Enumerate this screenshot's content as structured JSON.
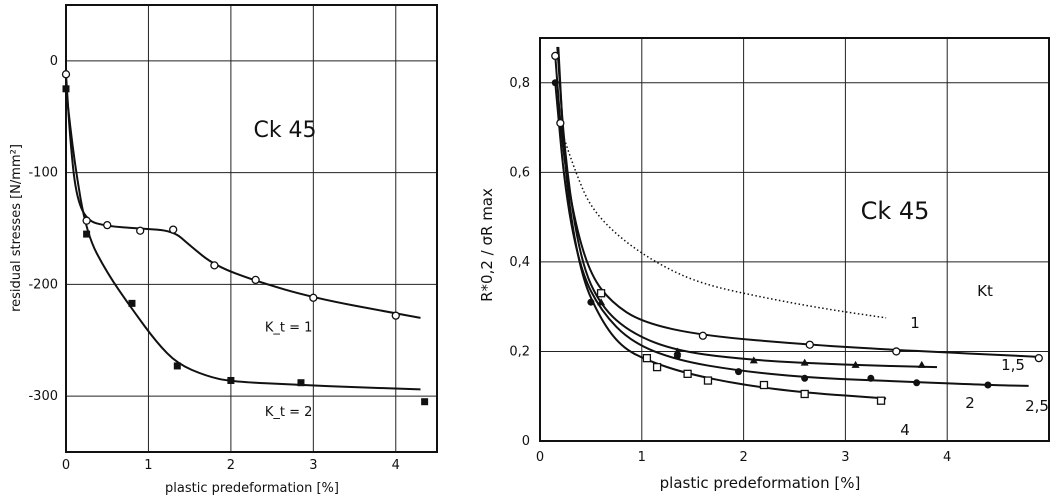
{
  "chart_data": [
    {
      "type": "line",
      "material": "Ck 45",
      "xlabel": "plastic predeformation [%]",
      "ylabel": "residual stresses [N/mm²]",
      "xlim": [
        0,
        4.5
      ],
      "ylim": [
        -350,
        50
      ],
      "xticks": [
        0,
        1,
        2,
        3,
        4
      ],
      "xtick_labels": [
        "0",
        "1",
        "2",
        "3",
        "4"
      ],
      "yticks": [
        0,
        -100,
        -200,
        -300
      ],
      "ytick_labels": [
        "0",
        "-100",
        "-200",
        "-300"
      ],
      "grid": true,
      "series": [
        {
          "name": "K_t = 1",
          "label_x": 2.7,
          "label_y": -242,
          "marker": "open-circle",
          "points": [
            [
              0,
              -12
            ],
            [
              0.25,
              -143
            ],
            [
              0.5,
              -147
            ],
            [
              0.9,
              -152
            ],
            [
              1.3,
              -151
            ],
            [
              1.8,
              -183
            ],
            [
              2.3,
              -196
            ],
            [
              3.0,
              -212
            ],
            [
              4.0,
              -228
            ]
          ],
          "curve": [
            [
              0,
              -12
            ],
            [
              0.05,
              -70
            ],
            [
              0.12,
              -120
            ],
            [
              0.25,
              -143
            ],
            [
              0.5,
              -148
            ],
            [
              0.9,
              -150
            ],
            [
              1.3,
              -152
            ],
            [
              1.5,
              -165
            ],
            [
              1.8,
              -183
            ],
            [
              2.3,
              -197
            ],
            [
              3.0,
              -212
            ],
            [
              4.0,
              -226
            ],
            [
              4.3,
              -230
            ]
          ]
        },
        {
          "name": "K_t = 2",
          "label_x": 2.7,
          "label_y": -318,
          "marker": "filled-square",
          "points": [
            [
              0,
              -25
            ],
            [
              0.25,
              -155
            ],
            [
              0.8,
              -217
            ],
            [
              1.35,
              -273
            ],
            [
              2.0,
              -286
            ],
            [
              2.85,
              -288
            ],
            [
              4.35,
              -305
            ]
          ],
          "curve": [
            [
              0,
              -25
            ],
            [
              0.1,
              -90
            ],
            [
              0.25,
              -155
            ],
            [
              0.5,
              -190
            ],
            [
              0.8,
              -222
            ],
            [
              1.1,
              -252
            ],
            [
              1.35,
              -271
            ],
            [
              1.7,
              -282
            ],
            [
              2.0,
              -287
            ],
            [
              2.85,
              -290
            ],
            [
              3.5,
              -292
            ],
            [
              4.3,
              -294
            ]
          ]
        }
      ]
    },
    {
      "type": "line",
      "material": "Ck 45",
      "xlabel": "plastic predeformation [%]",
      "ylabel": "R*0,2 / σR max",
      "xlim": [
        0,
        5
      ],
      "ylim": [
        0,
        0.9
      ],
      "xticks": [
        0,
        1,
        2,
        3,
        4
      ],
      "xtick_labels": [
        "0",
        "1",
        "2",
        "3",
        "4"
      ],
      "yticks": [
        0,
        0.2,
        0.4,
        0.6,
        0.8
      ],
      "ytick_labels": [
        "0",
        "0,2",
        "0,4",
        "0,6",
        "0,8"
      ],
      "grid": true,
      "legend_title": "Kt",
      "series": [
        {
          "name": "1",
          "style": "dotted",
          "marker": "none",
          "points": [],
          "curve": [
            [
              0.2,
              0.7
            ],
            [
              0.35,
              0.6
            ],
            [
              0.5,
              0.52
            ],
            [
              0.8,
              0.45
            ],
            [
              1.2,
              0.39
            ],
            [
              1.6,
              0.35
            ],
            [
              2.2,
              0.32
            ],
            [
              2.8,
              0.295
            ],
            [
              3.4,
              0.275
            ]
          ]
        },
        {
          "name": "1,5",
          "style": "solid",
          "marker": "open-circle",
          "points": [
            [
              0.15,
              0.86
            ],
            [
              0.2,
              0.71
            ],
            [
              0.6,
              0.33
            ],
            [
              1.6,
              0.235
            ],
            [
              2.65,
              0.215
            ],
            [
              3.5,
              0.2
            ],
            [
              4.9,
              0.185
            ]
          ],
          "curve": [
            [
              0.15,
              0.86
            ],
            [
              0.22,
              0.65
            ],
            [
              0.35,
              0.48
            ],
            [
              0.5,
              0.37
            ],
            [
              0.7,
              0.31
            ],
            [
              1.0,
              0.265
            ],
            [
              1.6,
              0.235
            ],
            [
              2.65,
              0.215
            ],
            [
              3.5,
              0.203
            ],
            [
              4.9,
              0.188
            ]
          ]
        },
        {
          "name": "2",
          "style": "solid",
          "marker": "filled-triangle",
          "points": [
            [
              0.6,
              0.31
            ],
            [
              1.35,
              0.2
            ],
            [
              2.1,
              0.18
            ],
            [
              2.6,
              0.175
            ],
            [
              3.1,
              0.17
            ],
            [
              3.75,
              0.17
            ]
          ],
          "curve": [
            [
              0.17,
              0.88
            ],
            [
              0.25,
              0.62
            ],
            [
              0.4,
              0.4
            ],
            [
              0.6,
              0.3
            ],
            [
              0.9,
              0.24
            ],
            [
              1.35,
              0.2
            ],
            [
              2.1,
              0.18
            ],
            [
              3.0,
              0.17
            ],
            [
              3.9,
              0.165
            ]
          ]
        },
        {
          "name": "2,5",
          "style": "solid",
          "marker": "filled-circle",
          "points": [
            [
              0.15,
              0.8
            ],
            [
              0.5,
              0.31
            ],
            [
              1.35,
              0.19
            ],
            [
              1.95,
              0.155
            ],
            [
              2.6,
              0.14
            ],
            [
              3.25,
              0.14
            ],
            [
              3.7,
              0.13
            ],
            [
              4.4,
              0.125
            ]
          ],
          "curve": [
            [
              0.15,
              0.8
            ],
            [
              0.25,
              0.55
            ],
            [
              0.4,
              0.38
            ],
            [
              0.6,
              0.29
            ],
            [
              0.9,
              0.22
            ],
            [
              1.35,
              0.18
            ],
            [
              1.95,
              0.157
            ],
            [
              2.6,
              0.142
            ],
            [
              3.3,
              0.135
            ],
            [
              4.4,
              0.125
            ],
            [
              4.8,
              0.123
            ]
          ]
        },
        {
          "name": "4",
          "style": "solid",
          "marker": "open-square",
          "points": [
            [
              0.6,
              0.33
            ],
            [
              1.05,
              0.185
            ],
            [
              1.15,
              0.165
            ],
            [
              1.45,
              0.15
            ],
            [
              1.65,
              0.135
            ],
            [
              2.2,
              0.125
            ],
            [
              2.6,
              0.105
            ],
            [
              3.35,
              0.09
            ]
          ],
          "curve": [
            [
              0.18,
              0.88
            ],
            [
              0.25,
              0.58
            ],
            [
              0.4,
              0.37
            ],
            [
              0.6,
              0.27
            ],
            [
              0.8,
              0.21
            ],
            [
              1.05,
              0.18
            ],
            [
              1.45,
              0.15
            ],
            [
              2.0,
              0.125
            ],
            [
              2.6,
              0.108
            ],
            [
              3.4,
              0.095
            ]
          ]
        }
      ]
    }
  ]
}
